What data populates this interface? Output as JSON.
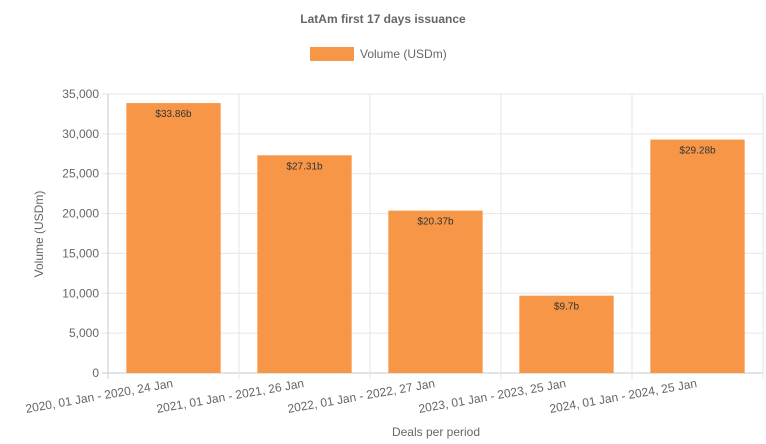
{
  "chart_data": {
    "type": "bar",
    "title": "LatAm first 17 days issuance",
    "categories": [
      "2020, 01 Jan - 2020, 24 Jan",
      "2021, 01 Jan - 2021, 26 Jan",
      "2022, 01 Jan - 2022, 27 Jan",
      "2023, 01 Jan - 2023, 25 Jan",
      "2024, 01 Jan - 2024, 25 Jan"
    ],
    "series": [
      {
        "name": "Volume (USDm)",
        "color": "#f79646",
        "values": [
          33860,
          27310,
          20370,
          9700,
          29280
        ],
        "labels": [
          "$33.86b",
          "$27.31b",
          "$20.37b",
          "$9.7b",
          "$29.28b"
        ]
      }
    ],
    "xlabel": "Deals per period",
    "ylabel": "Volume (USDm)",
    "ylim": [
      0,
      35000
    ],
    "yticks": [
      0,
      5000,
      10000,
      15000,
      20000,
      25000,
      30000,
      35000
    ],
    "ytick_labels": [
      "0",
      "5,000",
      "10,000",
      "15,000",
      "20,000",
      "25,000",
      "30,000",
      "35,000"
    ],
    "grid": true,
    "legend_position": "top"
  }
}
